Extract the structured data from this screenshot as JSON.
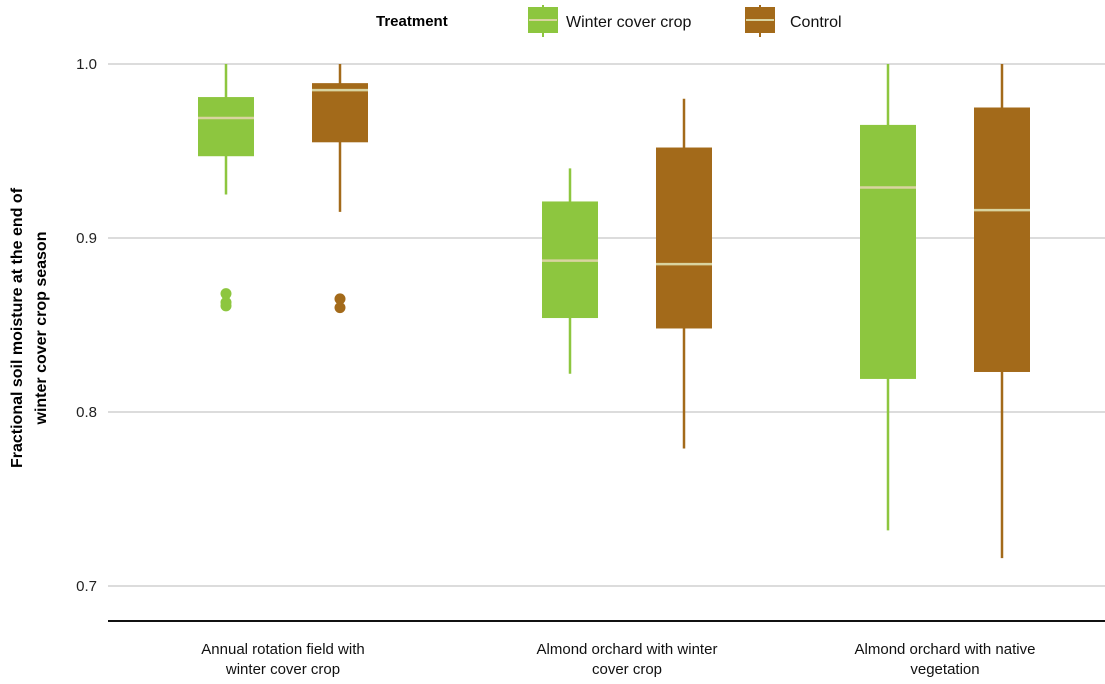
{
  "chart_data": {
    "type": "box",
    "ylabel_lines": [
      "Fractional soil moisture at the end of",
      "winter cover crop season"
    ],
    "ylim": [
      0.675,
      1.0
    ],
    "yticks": [
      0.7,
      0.8,
      0.9,
      1.0
    ],
    "ytick_labels": [
      "0.7",
      "0.8",
      "0.9",
      "1.0"
    ],
    "grid": true,
    "legend": {
      "title": "Treatment",
      "placement": "top",
      "entries": [
        {
          "label": "Winter cover crop",
          "color": "#8dc63f"
        },
        {
          "label": "Control",
          "color": "#a36a1a"
        }
      ]
    },
    "median_color": "#d9d4a0",
    "categories": [
      {
        "label_lines": [
          "Annual rotation field with",
          "winter cover crop"
        ]
      },
      {
        "label_lines": [
          "Almond orchard with winter",
          "cover crop"
        ]
      },
      {
        "label_lines": [
          "Almond orchard with native",
          "vegetation"
        ]
      }
    ],
    "series": [
      {
        "name": "Winter cover crop",
        "color": "#8dc63f",
        "boxes": [
          {
            "min": 0.925,
            "q1": 0.947,
            "median": 0.969,
            "q3": 0.981,
            "max": 1.0,
            "outliers": [
              0.868,
              0.863,
              0.861
            ]
          },
          {
            "min": 0.822,
            "q1": 0.854,
            "median": 0.887,
            "q3": 0.921,
            "max": 0.94,
            "outliers": []
          },
          {
            "min": 0.732,
            "q1": 0.819,
            "median": 0.929,
            "q3": 0.965,
            "max": 1.0,
            "outliers": []
          }
        ]
      },
      {
        "name": "Control",
        "color": "#a36a1a",
        "boxes": [
          {
            "min": 0.915,
            "q1": 0.955,
            "median": 0.985,
            "q3": 0.989,
            "max": 1.0,
            "outliers": [
              0.865,
              0.86
            ]
          },
          {
            "min": 0.779,
            "q1": 0.848,
            "median": 0.885,
            "q3": 0.952,
            "max": 0.98,
            "outliers": []
          },
          {
            "min": 0.716,
            "q1": 0.823,
            "median": 0.916,
            "q3": 0.975,
            "max": 1.0,
            "outliers": []
          }
        ]
      }
    ]
  }
}
